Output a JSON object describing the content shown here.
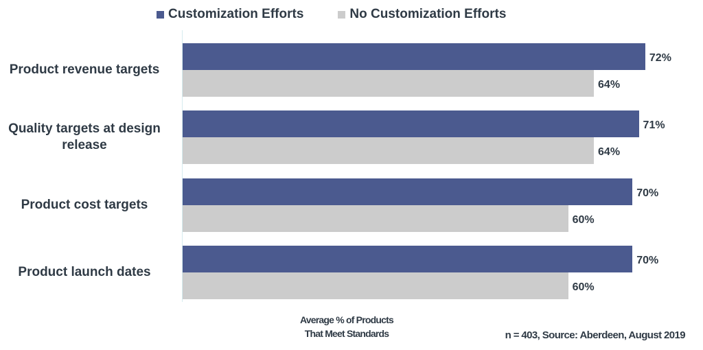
{
  "chart_data": {
    "type": "bar",
    "orientation": "horizontal",
    "categories": [
      "Product revenue targets",
      "Quality targets at design release",
      "Product cost targets",
      "Product launch dates"
    ],
    "series": [
      {
        "name": "Customization Efforts",
        "values": [
          72,
          71,
          70,
          70
        ],
        "color": "#4b5a8f"
      },
      {
        "name": "No Customization Efforts",
        "values": [
          64,
          64,
          60,
          60
        ],
        "color": "#cccccc"
      }
    ],
    "value_suffix": "%",
    "xlabel": "Average % of Products That Meet Standards",
    "xlabel_lines": [
      "Average % of Products",
      "That Meet Standards"
    ],
    "xlim": [
      0,
      80
    ],
    "grid": false,
    "legend": "top",
    "annotation": "n = 403, Source: Aberdeen, August 2019"
  }
}
